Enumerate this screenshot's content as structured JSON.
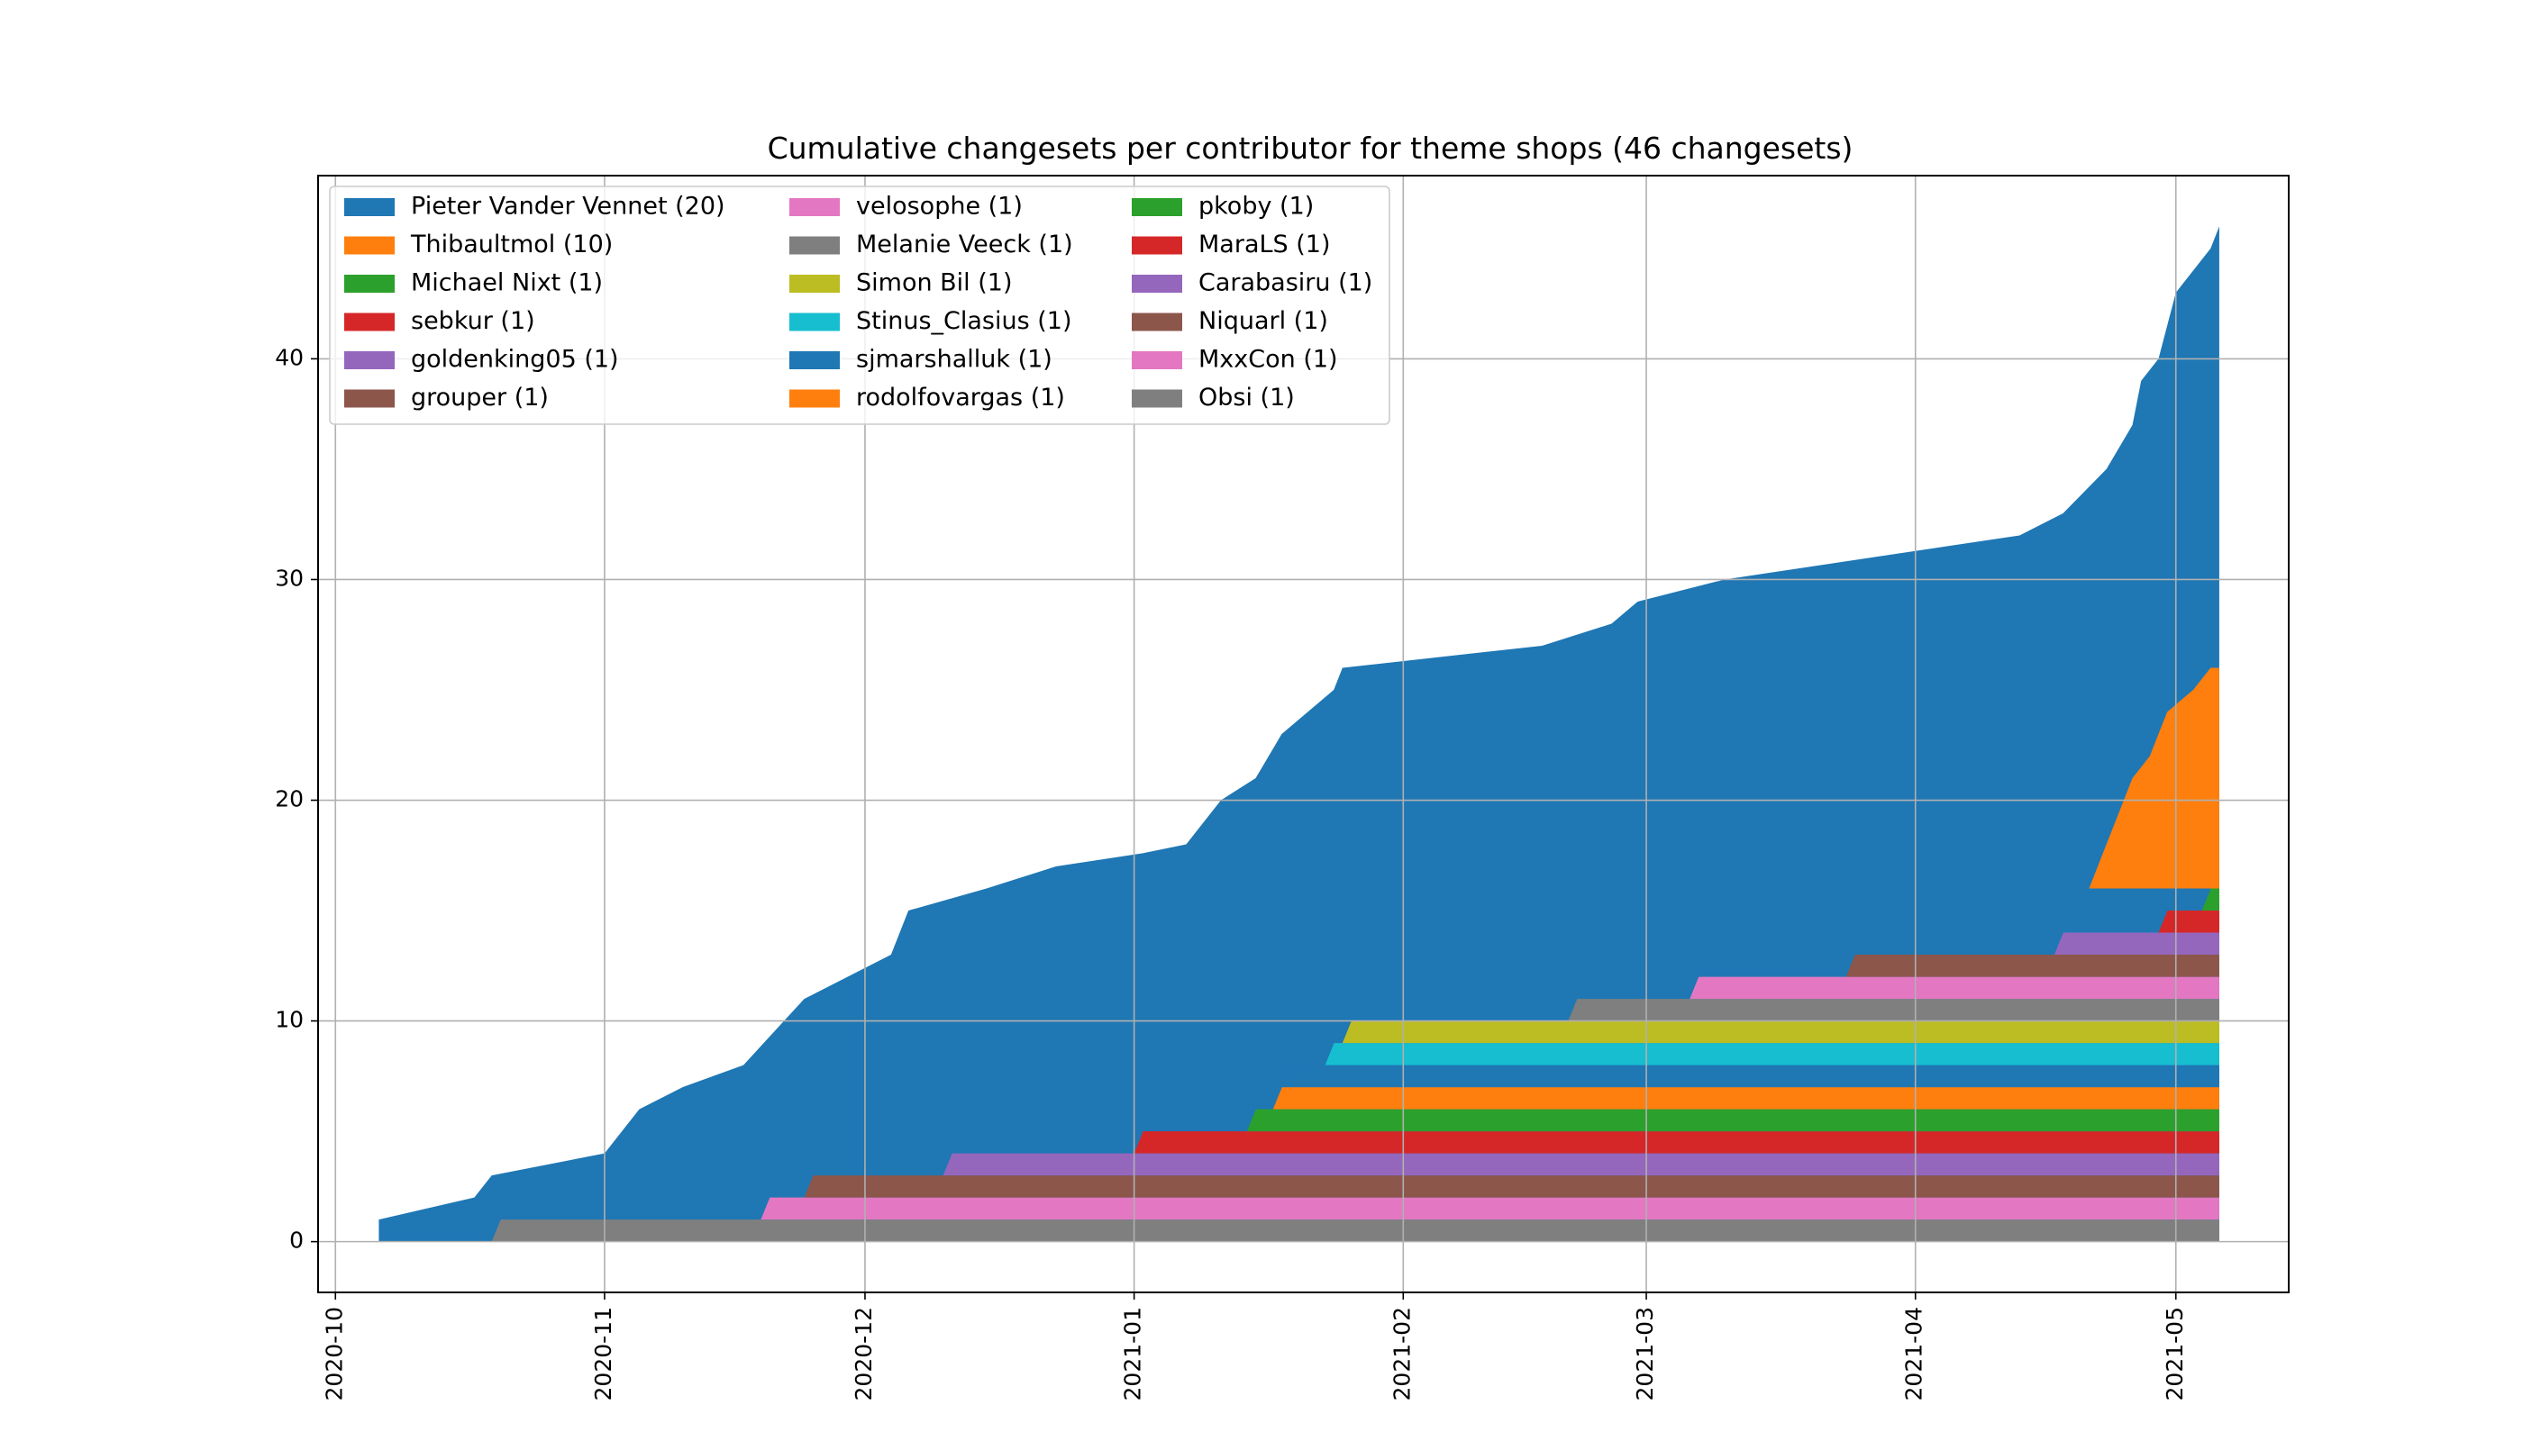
{
  "chart_data": {
    "type": "area",
    "stacked": true,
    "title": "Cumulative changesets per contributor for theme shops (46 changesets)",
    "xlabel": "",
    "ylabel": "",
    "x_axis": "date",
    "xlim": [
      "2020-09-29",
      "2021-05-14"
    ],
    "ylim": [
      -2.3,
      48.3
    ],
    "x_ticks": [
      "2020-10",
      "2020-11",
      "2020-12",
      "2021-01",
      "2021-02",
      "2021-03",
      "2021-04",
      "2021-05"
    ],
    "y_ticks": [
      0,
      10,
      20,
      30,
      40
    ],
    "grid": true,
    "legend_position": "top-left",
    "legend_columns": 3,
    "legend_entries": [
      "Pieter Vander Vennet (20)",
      "Thibaultmol (10)",
      "Michael Nixt (1)",
      "sebkur (1)",
      "goldenking05 (1)",
      "grouper (1)",
      "velosophe (1)",
      "Melanie Veeck (1)",
      "Simon Bil (1)",
      "Stinus_Clasius (1)",
      "sjmarshalluk (1)",
      "rodolfovargas (1)",
      "pkoby (1)",
      "MaraLS (1)",
      "Carabasiru (1)",
      "Niquarl (1)",
      "MxxCon (1)",
      "Obsi (1)"
    ],
    "series_stack_order": [
      {
        "label": "Obsi (1)",
        "color": "#7f7f7f",
        "start": "2020-10-19"
      },
      {
        "label": "velosophe (1)",
        "color": "#e377c2",
        "start": "2020-11-19"
      },
      {
        "label": "grouper (1)",
        "color": "#8c564b",
        "start": "2020-11-24"
      },
      {
        "label": "goldenking05 (1)",
        "color": "#9467bd",
        "start": "2020-12-10"
      },
      {
        "label": "sebkur (1)",
        "color": "#d62728",
        "start": "2021-01-01"
      },
      {
        "label": "Michael Nixt (1)",
        "color": "#2ca02c",
        "start": "2021-01-14"
      },
      {
        "label": "rodolfovargas (1)",
        "color": "#ff7f0e",
        "start": "2021-01-17"
      },
      {
        "label": "sjmarshalluk (1)",
        "color": "#1f77b4",
        "start": "2021-01-18"
      },
      {
        "label": "Stinus_Clasius (1)",
        "color": "#17becf",
        "start": "2021-01-23"
      },
      {
        "label": "Simon Bil (1)",
        "color": "#bcbd22",
        "start": "2021-01-25"
      },
      {
        "label": "Melanie Veeck (1)",
        "color": "#7f7f7f",
        "start": "2021-02-20"
      },
      {
        "label": "MxxCon (1)",
        "color": "#e377c2",
        "start": "2021-03-06"
      },
      {
        "label": "Niquarl (1)",
        "color": "#8c564b",
        "start": "2021-03-24"
      },
      {
        "label": "Carabasiru (1)",
        "color": "#9467bd",
        "start": "2021-04-17"
      },
      {
        "label": "MaraLS (1)",
        "color": "#d62728",
        "start": "2021-04-29"
      },
      {
        "label": "pkoby (1)",
        "color": "#2ca02c",
        "start": "2021-05-04"
      }
    ],
    "thibaultmol_series": {
      "label": "Thibaultmol (10)",
      "color": "#ff7f0e",
      "points": [
        {
          "x": "2021-04-21",
          "y": 0
        },
        {
          "x": "2021-04-22",
          "y": 1
        },
        {
          "x": "2021-04-23",
          "y": 2
        },
        {
          "x": "2021-04-25",
          "y": 4
        },
        {
          "x": "2021-04-26",
          "y": 5
        },
        {
          "x": "2021-04-28",
          "y": 6
        },
        {
          "x": "2021-04-30",
          "y": 8
        },
        {
          "x": "2021-05-03",
          "y": 9
        },
        {
          "x": "2021-05-05",
          "y": 10
        }
      ]
    },
    "total": {
      "label": "Pieter Vander Vennet (20)",
      "color": "#1f77b4",
      "points": [
        {
          "x": "2020-10-06",
          "y": 1
        },
        {
          "x": "2020-10-17",
          "y": 2
        },
        {
          "x": "2020-10-19",
          "y": 3
        },
        {
          "x": "2020-11-01",
          "y": 4
        },
        {
          "x": "2020-11-05",
          "y": 6
        },
        {
          "x": "2020-11-10",
          "y": 7
        },
        {
          "x": "2020-11-17",
          "y": 8
        },
        {
          "x": "2020-11-24",
          "y": 11
        },
        {
          "x": "2020-12-04",
          "y": 13
        },
        {
          "x": "2020-12-06",
          "y": 15
        },
        {
          "x": "2020-12-15",
          "y": 16
        },
        {
          "x": "2020-12-23",
          "y": 17
        },
        {
          "x": "2021-01-02",
          "y": 17.6
        },
        {
          "x": "2021-01-07",
          "y": 18
        },
        {
          "x": "2021-01-11",
          "y": 20
        },
        {
          "x": "2021-01-15",
          "y": 21
        },
        {
          "x": "2021-01-18",
          "y": 23
        },
        {
          "x": "2021-01-24",
          "y": 25
        },
        {
          "x": "2021-01-25",
          "y": 26
        },
        {
          "x": "2021-02-17",
          "y": 27
        },
        {
          "x": "2021-02-25",
          "y": 28
        },
        {
          "x": "2021-02-28",
          "y": 29
        },
        {
          "x": "2021-03-10",
          "y": 30
        },
        {
          "x": "2021-04-13",
          "y": 32
        },
        {
          "x": "2021-04-18",
          "y": 33
        },
        {
          "x": "2021-04-23",
          "y": 35
        },
        {
          "x": "2021-04-26",
          "y": 37
        },
        {
          "x": "2021-04-27",
          "y": 39
        },
        {
          "x": "2021-04-29",
          "y": 40
        },
        {
          "x": "2021-05-01",
          "y": 43
        },
        {
          "x": "2021-05-05",
          "y": 45
        },
        {
          "x": "2021-05-06",
          "y": 46
        }
      ]
    },
    "x_end": "2021-05-06"
  }
}
